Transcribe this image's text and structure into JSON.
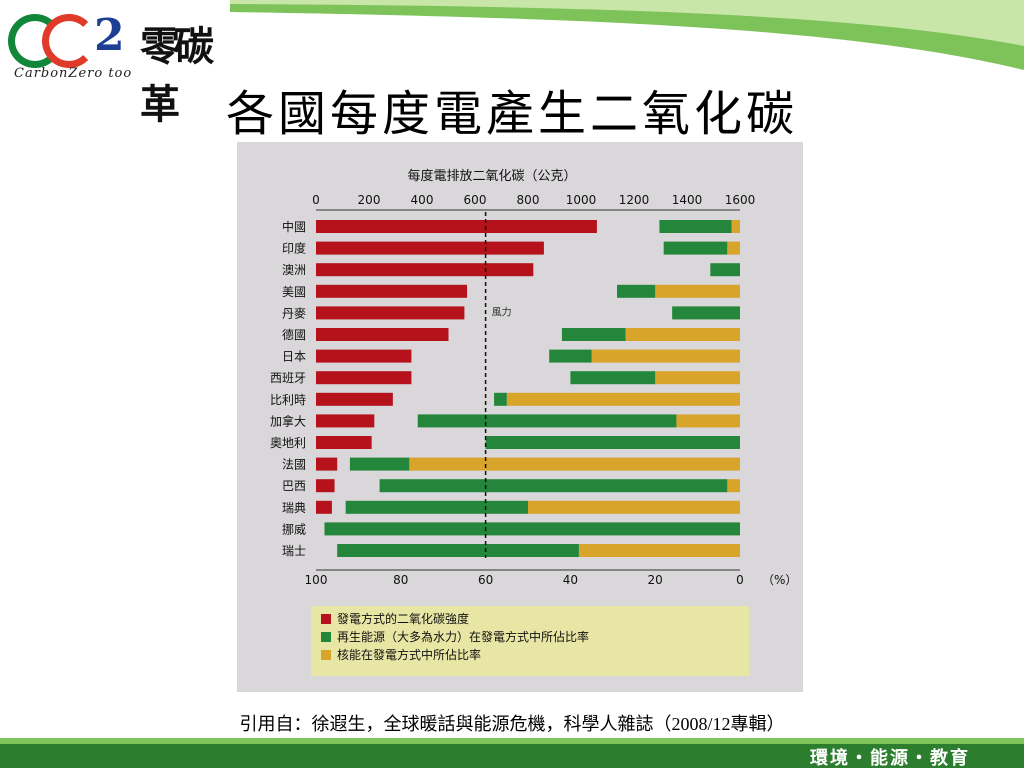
{
  "slide": {
    "title": "各國每度電產生二氧化碳",
    "citation": "引用自：徐遐生，全球暖話與能源危機，科學人雜誌（2008/12專輯）",
    "footer": "環境・能源・教育"
  },
  "logo": {
    "mark": "CO2",
    "zh": "零碳革",
    "en": "CarbonZero too"
  },
  "colors": {
    "green_band": "#7ec25a",
    "dark_green": "#2c7d2e",
    "co2_red": "#b5121b",
    "renewable_green": "#23863a",
    "nuclear_yellow": "#d8a52a"
  },
  "chart_data": {
    "type": "bar",
    "title": "每度電排放二氧化碳（公克）",
    "top_axis": {
      "ticks": [
        0,
        200,
        400,
        600,
        800,
        1000,
        1200,
        1400,
        1600
      ],
      "range": [
        0,
        1600
      ]
    },
    "bottom_axis": {
      "ticks": [
        100,
        80,
        60,
        40,
        20,
        0
      ],
      "unit": "（%）",
      "range": [
        100,
        0
      ]
    },
    "categories": [
      "中國",
      "印度",
      "澳洲",
      "美國",
      "丹麥",
      "德國",
      "日本",
      "西班牙",
      "比利時",
      "加拿大",
      "奧地利",
      "法國",
      "巴西",
      "瑞典",
      "挪威",
      "瑞士"
    ],
    "series": [
      {
        "name": "發電方式的二氧化碳強度",
        "color": "#b5121b",
        "unit": "g",
        "values": [
          1060,
          860,
          820,
          570,
          560,
          500,
          360,
          360,
          290,
          220,
          210,
          80,
          70,
          60,
          0,
          0
        ]
      },
      {
        "name": "再生能源（大多為水力）在發電方式中所佔比率",
        "color": "#23863a",
        "unit": "%",
        "values": [
          17,
          15,
          7,
          9,
          16,
          15,
          10,
          20,
          3,
          61,
          60,
          14,
          82,
          43,
          98,
          57
        ]
      },
      {
        "name": "核能在發電方式中所佔比率",
        "color": "#d8a52a",
        "unit": "%",
        "values": [
          2,
          3,
          0,
          20,
          0,
          27,
          35,
          20,
          55,
          15,
          0,
          78,
          3,
          50,
          0,
          38
        ]
      }
    ],
    "legend_position": "bottom",
    "annotation": "風力",
    "reference_line": {
      "value_percent": 60
    }
  }
}
